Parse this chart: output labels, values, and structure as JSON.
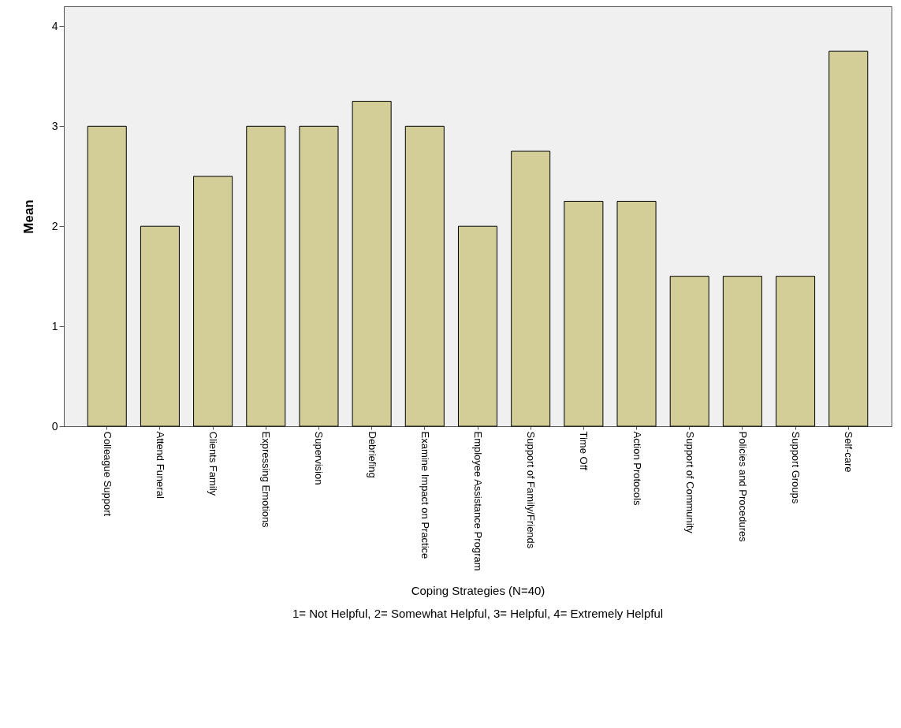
{
  "chart_data": {
    "type": "bar",
    "xlabel": "Coping Strategies (N=40)",
    "ylabel": "Mean",
    "categories": [
      "Colleague Support",
      "Attend Funeral",
      "Clients Family",
      "Expressing Emotions",
      "Supervision",
      "Debriefing",
      "Examine Impact on Practice",
      "Employee Assistance Program",
      "Support of Family/Friends",
      "Time Off",
      "Action Protocols",
      "Support of Community",
      "Policies and Procedures",
      "Support Groups",
      "Self-care"
    ],
    "values": [
      3,
      2,
      2.5,
      3,
      3,
      3.25,
      3,
      2,
      2.75,
      2.25,
      2.25,
      1.5,
      1.5,
      1.5,
      3.75
    ],
    "color": "#d3ce98",
    "ylim": [
      0,
      4.2
    ],
    "yticks": [
      0,
      1,
      2,
      3,
      4
    ],
    "grid": false,
    "annotations": [
      "1= Not Helpful, 2= Somewhat Helpful, 3= Helpful, 4= Extremely Helpful"
    ]
  }
}
